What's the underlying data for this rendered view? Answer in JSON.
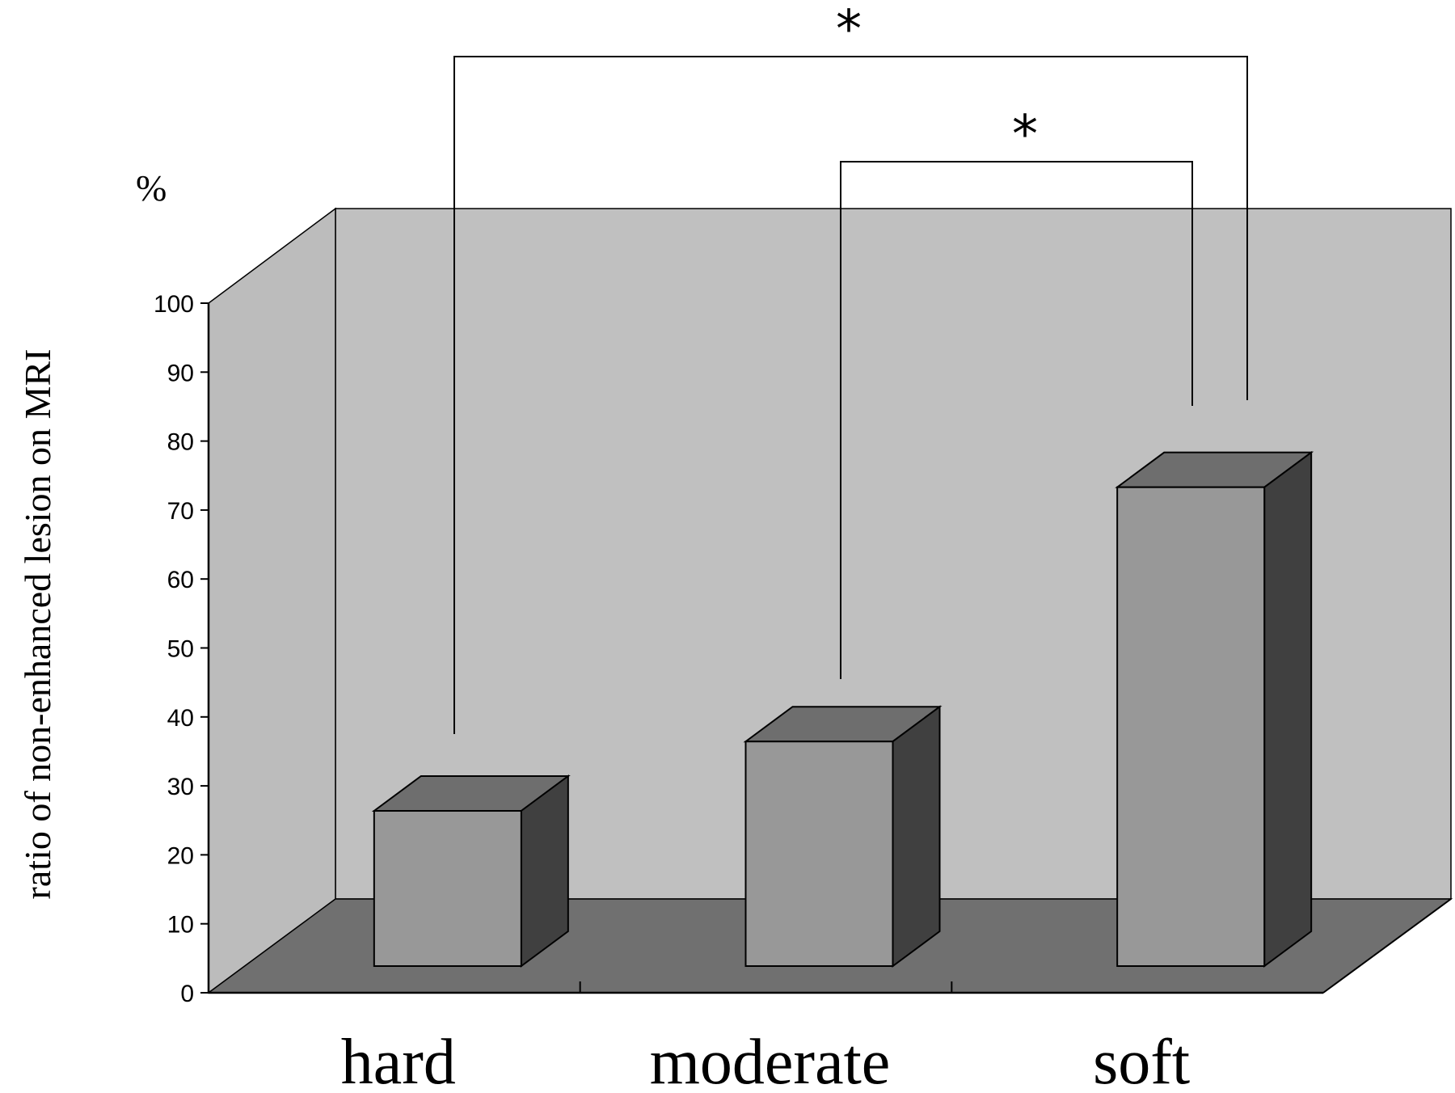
{
  "chart_data": {
    "type": "bar",
    "style": "3d",
    "categories": [
      "hard",
      "moderate",
      "soft"
    ],
    "values": [
      23.5,
      34,
      72.5
    ],
    "ylabel": "ratio of non-enhanced lesion on MRI",
    "yunit": "%",
    "ylim": [
      0,
      100
    ],
    "yticks": [
      0,
      10,
      20,
      30,
      40,
      50,
      60,
      70,
      80,
      90,
      100
    ],
    "grid": false,
    "legend": "none",
    "significance": [
      {
        "from": "hard",
        "to": "soft",
        "label": "*"
      },
      {
        "from": "moderate",
        "to": "soft",
        "label": "*"
      }
    ]
  },
  "colors": {
    "back_wall": "#c0c0c0",
    "side_wall": "#bcbcbc",
    "floor": "#707070",
    "bar_front": "#989898",
    "bar_top": "#6e6e6e",
    "bar_side": "#404040"
  }
}
